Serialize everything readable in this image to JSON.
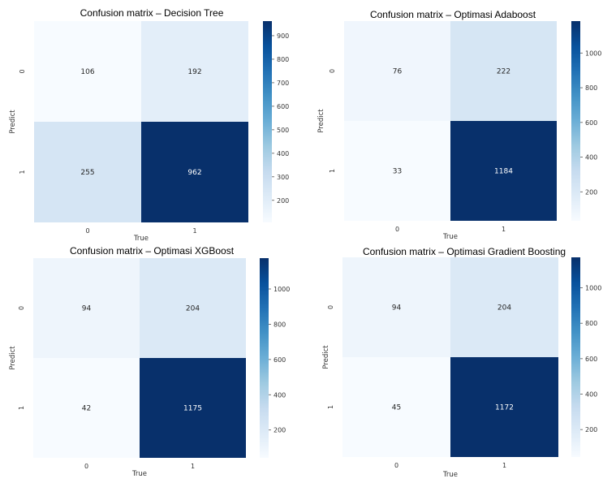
{
  "chart_data": [
    {
      "type": "heatmap",
      "title": "Confusion matrix – Decision Tree",
      "xlabel": "True",
      "ylabel": "Predict",
      "x_categories": [
        "0",
        "1"
      ],
      "y_categories": [
        "0",
        "1"
      ],
      "values": [
        [
          106,
          192
        ],
        [
          255,
          962
        ]
      ],
      "colormap": "Blues",
      "colorbar_range": [
        106,
        962
      ],
      "colorbar_ticks": [
        200,
        300,
        400,
        500,
        600,
        700,
        800,
        900
      ]
    },
    {
      "type": "heatmap",
      "title": "Confusion matrix – Optimasi Adaboost",
      "xlabel": "True",
      "ylabel": "Predict",
      "x_categories": [
        "0",
        "1"
      ],
      "y_categories": [
        "0",
        "1"
      ],
      "values": [
        [
          76,
          222
        ],
        [
          33,
          1184
        ]
      ],
      "colormap": "Blues",
      "colorbar_range": [
        33,
        1184
      ],
      "colorbar_ticks": [
        200,
        400,
        600,
        800,
        1000
      ]
    },
    {
      "type": "heatmap",
      "title": "Confusion matrix – Optimasi XGBoost",
      "xlabel": "True",
      "ylabel": "Predict",
      "x_categories": [
        "0",
        "1"
      ],
      "y_categories": [
        "0",
        "1"
      ],
      "values": [
        [
          94,
          204
        ],
        [
          42,
          1175
        ]
      ],
      "colormap": "Blues",
      "colorbar_range": [
        42,
        1175
      ],
      "colorbar_ticks": [
        200,
        400,
        600,
        800,
        1000
      ]
    },
    {
      "type": "heatmap",
      "title": "Confusion matrix – Optimasi Gradient Boosting",
      "xlabel": "True",
      "ylabel": "Predict",
      "x_categories": [
        "0",
        "1"
      ],
      "y_categories": [
        "0",
        "1"
      ],
      "values": [
        [
          94,
          204
        ],
        [
          45,
          1172
        ]
      ],
      "colormap": "Blues",
      "colorbar_range": [
        45,
        1172
      ],
      "colorbar_ticks": [
        200,
        400,
        600,
        800,
        1000
      ]
    }
  ]
}
